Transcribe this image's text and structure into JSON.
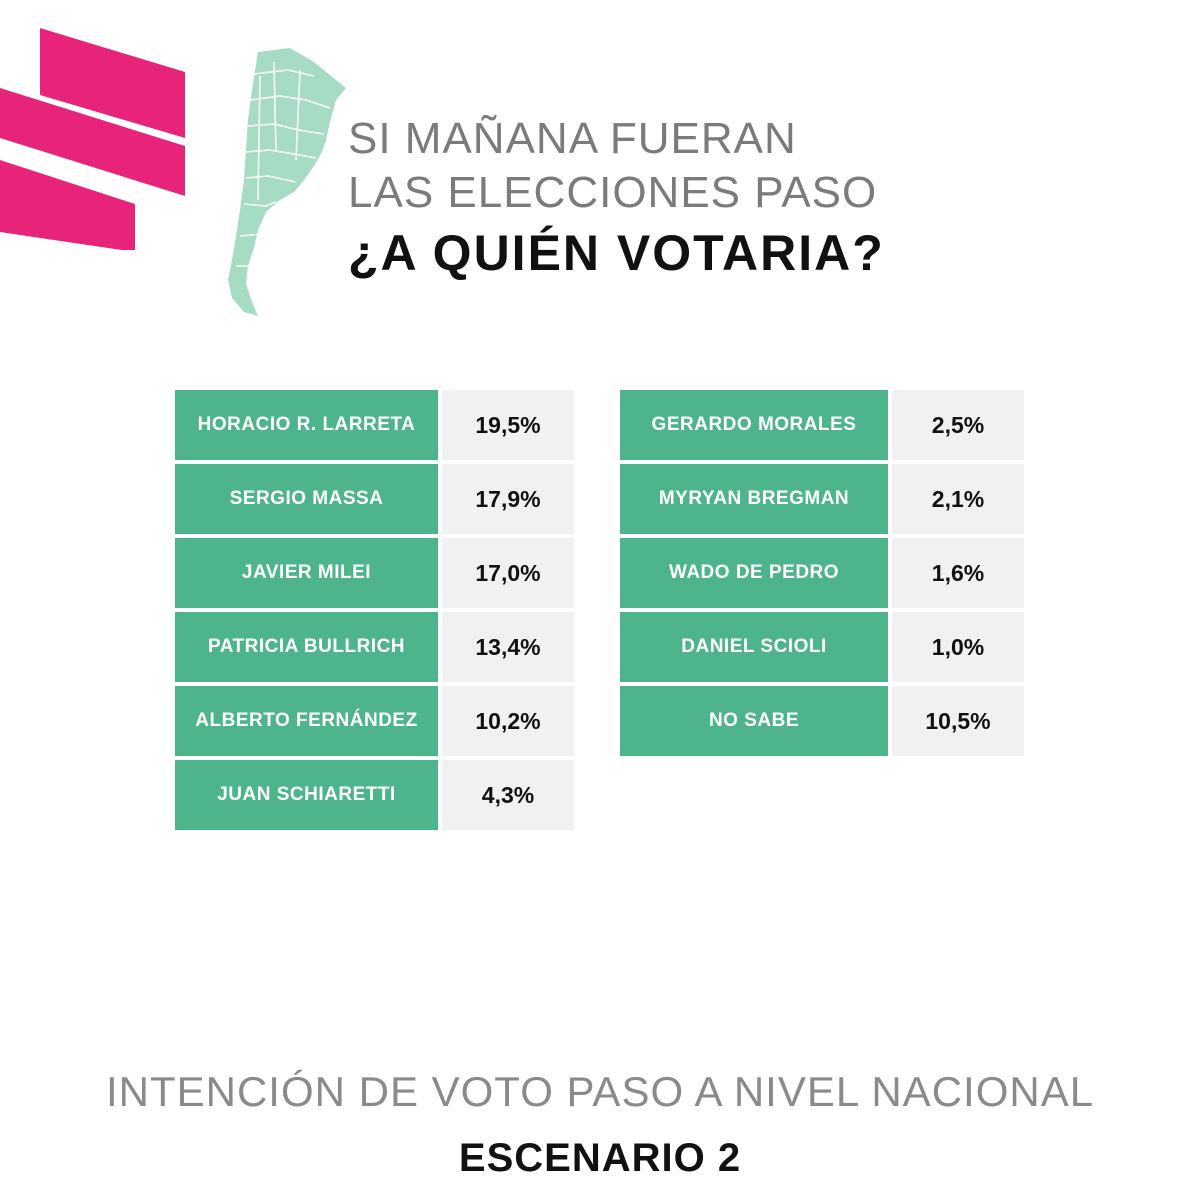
{
  "colors": {
    "accent_pink": "#e8237a",
    "map_green": "#a6dcc3",
    "cell_green": "#4eb48c",
    "value_bg": "#f1f1f1"
  },
  "icons": {
    "logo": "pink-stripes-logo",
    "map": "argentina-map-icon"
  },
  "header": {
    "line1": "SI MAÑANA FUERAN",
    "line2": "LAS ELECCIONES PASO",
    "question": "¿A QUIÉN VOTARIA?"
  },
  "chart_data": {
    "type": "table",
    "unit": "%",
    "columns": [
      [
        {
          "name": "HORACIO R. LARRETA",
          "value": 19.5,
          "label": "19,5%"
        },
        {
          "name": "SERGIO MASSA",
          "value": 17.9,
          "label": "17,9%"
        },
        {
          "name": "JAVIER MILEI",
          "value": 17.0,
          "label": "17,0%"
        },
        {
          "name": "PATRICIA BULLRICH",
          "value": 13.4,
          "label": "13,4%"
        },
        {
          "name": "ALBERTO FERNÁNDEZ",
          "value": 10.2,
          "label": "10,2%"
        },
        {
          "name": "JUAN SCHIARETTI",
          "value": 4.3,
          "label": "4,3%"
        }
      ],
      [
        {
          "name": "GERARDO MORALES",
          "value": 2.5,
          "label": "2,5%"
        },
        {
          "name": "MYRYAN BREGMAN",
          "value": 2.1,
          "label": "2,1%"
        },
        {
          "name": "WADO DE PEDRO",
          "value": 1.6,
          "label": "1,6%"
        },
        {
          "name": "DANIEL SCIOLI",
          "value": 1.0,
          "label": "1,0%"
        },
        {
          "name": "NO SABE",
          "value": 10.5,
          "label": "10,5%"
        }
      ]
    ]
  },
  "footer": {
    "line1": "INTENCIÓN DE VOTO PASO A NIVEL NACIONAL",
    "line2": "ESCENARIO 2"
  }
}
